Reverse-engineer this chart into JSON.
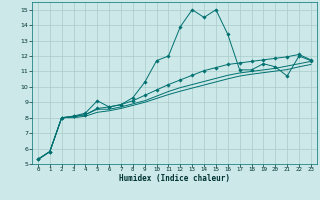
{
  "xlabel": "Humidex (Indice chaleur)",
  "bg_color": "#cce8e8",
  "grid_color": "#aacccc",
  "line_color": "#007070",
  "xlim": [
    -0.5,
    23.5
  ],
  "ylim": [
    5,
    15.5
  ],
  "xticks": [
    0,
    1,
    2,
    3,
    4,
    5,
    6,
    7,
    8,
    9,
    10,
    11,
    12,
    13,
    14,
    15,
    16,
    17,
    18,
    19,
    20,
    21,
    22,
    23
  ],
  "yticks": [
    5,
    6,
    7,
    8,
    9,
    10,
    11,
    12,
    13,
    14,
    15
  ],
  "line1_x": [
    0,
    1,
    2,
    3,
    4,
    5,
    6,
    7,
    8,
    9,
    10,
    11,
    12,
    13,
    14,
    15,
    16,
    17,
    18,
    19,
    20,
    21,
    22,
    23
  ],
  "line1_y": [
    5.3,
    5.8,
    8.0,
    8.1,
    8.2,
    8.6,
    8.7,
    8.85,
    9.3,
    10.3,
    11.7,
    12.0,
    13.9,
    15.0,
    14.5,
    15.0,
    13.4,
    11.1,
    11.1,
    11.5,
    11.3,
    10.7,
    12.0,
    11.7
  ],
  "line2_x": [
    0,
    1,
    2,
    3,
    4,
    5,
    6,
    7,
    8,
    9,
    10,
    11,
    12,
    13,
    14,
    15,
    16,
    17,
    18,
    19,
    20,
    21,
    22,
    23
  ],
  "line2_y": [
    5.3,
    5.8,
    8.0,
    8.1,
    8.3,
    9.1,
    8.7,
    8.85,
    9.1,
    9.45,
    9.8,
    10.15,
    10.45,
    10.75,
    11.05,
    11.25,
    11.45,
    11.55,
    11.65,
    11.75,
    11.85,
    11.95,
    12.1,
    11.75
  ],
  "line3_x": [
    0,
    1,
    2,
    3,
    4,
    5,
    6,
    7,
    8,
    9,
    10,
    11,
    12,
    13,
    14,
    15,
    16,
    17,
    18,
    19,
    20,
    21,
    22,
    23
  ],
  "line3_y": [
    5.3,
    5.8,
    8.0,
    8.05,
    8.2,
    8.55,
    8.55,
    8.7,
    8.9,
    9.1,
    9.4,
    9.7,
    9.95,
    10.15,
    10.35,
    10.55,
    10.75,
    10.9,
    11.0,
    11.1,
    11.2,
    11.35,
    11.5,
    11.65
  ],
  "line4_x": [
    0,
    1,
    2,
    3,
    4,
    5,
    6,
    7,
    8,
    9,
    10,
    11,
    12,
    13,
    14,
    15,
    16,
    17,
    18,
    19,
    20,
    21,
    22,
    23
  ],
  "line4_y": [
    5.3,
    5.8,
    8.0,
    8.0,
    8.1,
    8.35,
    8.45,
    8.6,
    8.8,
    9.0,
    9.25,
    9.5,
    9.72,
    9.92,
    10.12,
    10.32,
    10.52,
    10.7,
    10.82,
    10.92,
    11.02,
    11.12,
    11.3,
    11.45
  ]
}
